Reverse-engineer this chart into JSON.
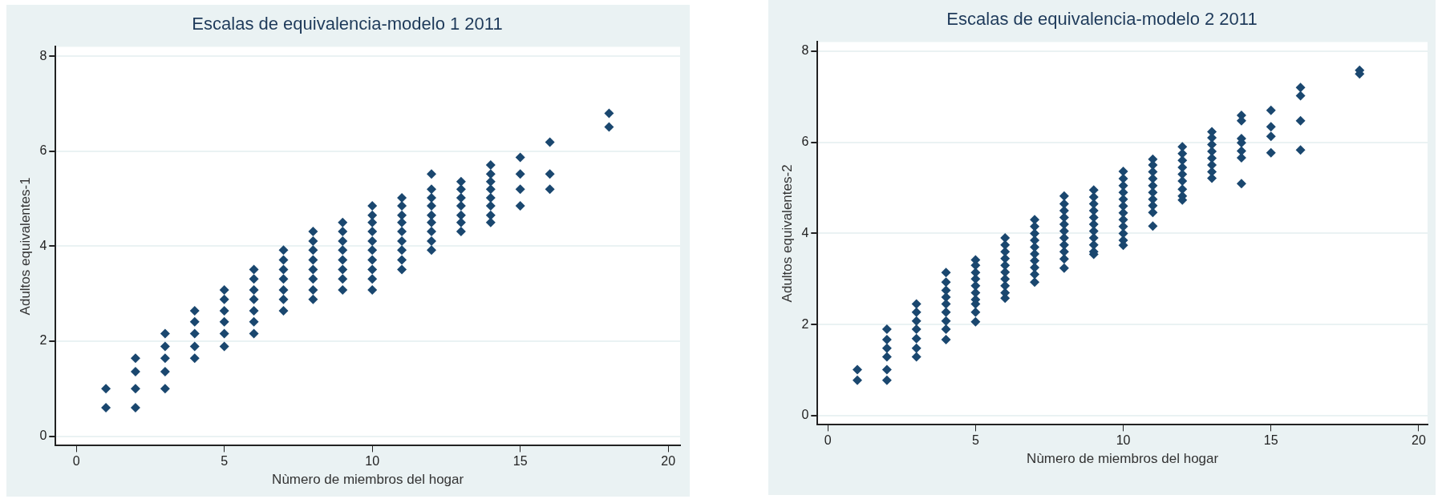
{
  "chart_data": [
    {
      "type": "scatter",
      "title": "Escalas de equivalencia-modelo 1 2011",
      "xlabel": "Nùmero de miembros del hogar",
      "ylabel": "Adultos equivalentes-1",
      "marker": "diamond",
      "grid": "y",
      "xlim": [
        -0.7,
        20.4
      ],
      "ylim": [
        -0.2,
        8.2
      ],
      "xticks": [
        0,
        5,
        10,
        15,
        20
      ],
      "yticks": [
        0,
        2,
        4,
        6,
        8
      ],
      "series": [
        {
          "color": "#1a476f",
          "x": [
            1,
            1,
            2,
            2,
            2,
            2,
            3,
            3,
            3,
            3,
            3,
            4,
            4,
            4,
            4,
            4,
            5,
            5,
            5,
            5,
            5,
            5,
            6,
            6,
            6,
            6,
            6,
            6,
            6,
            7,
            7,
            7,
            7,
            7,
            7,
            7,
            8,
            8,
            8,
            8,
            8,
            8,
            8,
            8,
            9,
            9,
            9,
            9,
            9,
            9,
            9,
            9,
            10,
            10,
            10,
            10,
            10,
            10,
            10,
            10,
            10,
            10,
            11,
            11,
            11,
            11,
            11,
            11,
            11,
            11,
            11,
            12,
            12,
            12,
            12,
            12,
            12,
            12,
            12,
            12,
            13,
            13,
            13,
            13,
            13,
            13,
            13,
            14,
            14,
            14,
            14,
            14,
            14,
            14,
            14,
            15,
            15,
            15,
            15,
            16,
            16,
            16,
            18,
            18
          ],
          "values": [
            1.0,
            0.6,
            1.64,
            1.36,
            1.0,
            0.6,
            2.16,
            1.89,
            1.64,
            1.36,
            1.0,
            2.64,
            2.41,
            2.16,
            1.89,
            1.64,
            3.08,
            2.88,
            2.64,
            2.41,
            2.16,
            1.89,
            3.51,
            3.31,
            3.08,
            2.88,
            2.64,
            2.41,
            2.16,
            3.92,
            3.71,
            3.51,
            3.31,
            3.08,
            2.88,
            2.64,
            4.31,
            4.11,
            3.92,
            3.71,
            3.51,
            3.31,
            3.08,
            2.88,
            4.5,
            4.31,
            4.11,
            3.92,
            3.71,
            3.51,
            3.31,
            3.08,
            4.85,
            4.65,
            4.5,
            4.31,
            4.11,
            3.92,
            3.71,
            3.51,
            3.31,
            3.08,
            5.02,
            4.85,
            4.65,
            4.5,
            4.31,
            4.11,
            3.92,
            3.71,
            3.51,
            5.52,
            5.2,
            5.02,
            4.85,
            4.65,
            4.5,
            4.31,
            4.11,
            3.92,
            5.36,
            5.2,
            5.02,
            4.85,
            4.65,
            4.5,
            4.31,
            5.71,
            5.52,
            5.36,
            5.2,
            5.02,
            4.85,
            4.65,
            4.5,
            5.87,
            5.52,
            5.2,
            4.85,
            6.19,
            5.52,
            5.2,
            6.8,
            6.51
          ]
        }
      ]
    },
    {
      "type": "scatter",
      "title": "Escalas de equivalencia-modelo 2 2011",
      "xlabel": "Nùmero de miembros del hogar",
      "ylabel": "Adultos equivalentes-2",
      "marker": "diamond",
      "grid": "y",
      "xlim": [
        -0.35,
        20.3
      ],
      "ylim": [
        -0.2,
        8.2
      ],
      "xticks": [
        0,
        5,
        10,
        15,
        20
      ],
      "yticks": [
        0,
        2,
        4,
        6,
        8
      ],
      "series": [
        {
          "color": "#1a476f",
          "x": [
            1,
            1,
            2,
            2,
            2,
            2,
            2,
            2,
            3,
            3,
            3,
            3,
            3,
            3,
            3,
            4,
            4,
            4,
            4,
            4,
            4,
            4,
            4,
            4,
            5,
            5,
            5,
            5,
            5,
            5,
            5,
            5,
            5,
            5,
            6,
            6,
            6,
            6,
            6,
            6,
            6,
            6,
            6,
            6,
            7,
            7,
            7,
            7,
            7,
            7,
            7,
            7,
            7,
            7,
            8,
            8,
            8,
            8,
            8,
            8,
            8,
            8,
            8,
            8,
            8,
            9,
            9,
            9,
            9,
            9,
            9,
            9,
            9,
            9,
            9,
            9,
            10,
            10,
            10,
            10,
            10,
            10,
            10,
            10,
            10,
            10,
            10,
            10,
            11,
            11,
            11,
            11,
            11,
            11,
            11,
            11,
            11,
            11,
            12,
            12,
            12,
            12,
            12,
            12,
            12,
            12,
            12,
            13,
            13,
            13,
            13,
            13,
            13,
            13,
            13,
            14,
            14,
            14,
            14,
            14,
            14,
            14,
            15,
            15,
            15,
            15,
            16,
            16,
            16,
            16,
            18,
            18
          ],
          "values": [
            1.01,
            0.78,
            1.9,
            1.67,
            1.48,
            1.29,
            1.01,
            0.78,
            2.45,
            2.27,
            2.08,
            1.9,
            1.69,
            1.48,
            1.29,
            3.14,
            2.93,
            2.75,
            2.6,
            2.45,
            2.27,
            2.08,
            1.9,
            1.67,
            3.42,
            3.3,
            3.14,
            3.0,
            2.85,
            2.7,
            2.55,
            2.45,
            2.27,
            2.06,
            3.9,
            3.75,
            3.6,
            3.45,
            3.3,
            3.15,
            3.0,
            2.85,
            2.7,
            2.58,
            4.3,
            4.15,
            4.0,
            3.85,
            3.7,
            3.55,
            3.4,
            3.25,
            3.1,
            2.93,
            4.82,
            4.65,
            4.5,
            4.35,
            4.2,
            4.05,
            3.9,
            3.75,
            3.6,
            3.44,
            3.24,
            4.95,
            4.8,
            4.65,
            4.5,
            4.35,
            4.2,
            4.05,
            3.9,
            3.75,
            3.6,
            3.54,
            5.36,
            5.2,
            5.05,
            4.9,
            4.75,
            4.6,
            4.45,
            4.3,
            4.15,
            4.0,
            3.85,
            3.74,
            5.63,
            5.5,
            5.35,
            5.2,
            5.05,
            4.9,
            4.75,
            4.61,
            4.46,
            4.16,
            5.9,
            5.75,
            5.6,
            5.45,
            5.3,
            5.15,
            4.97,
            4.82,
            4.73,
            6.23,
            6.1,
            5.95,
            5.8,
            5.65,
            5.5,
            5.35,
            5.21,
            6.59,
            6.47,
            6.08,
            5.99,
            5.81,
            5.66,
            5.09,
            6.7,
            6.34,
            6.13,
            5.77,
            7.2,
            7.02,
            6.47,
            5.83,
            7.58,
            7.5
          ]
        }
      ]
    }
  ]
}
